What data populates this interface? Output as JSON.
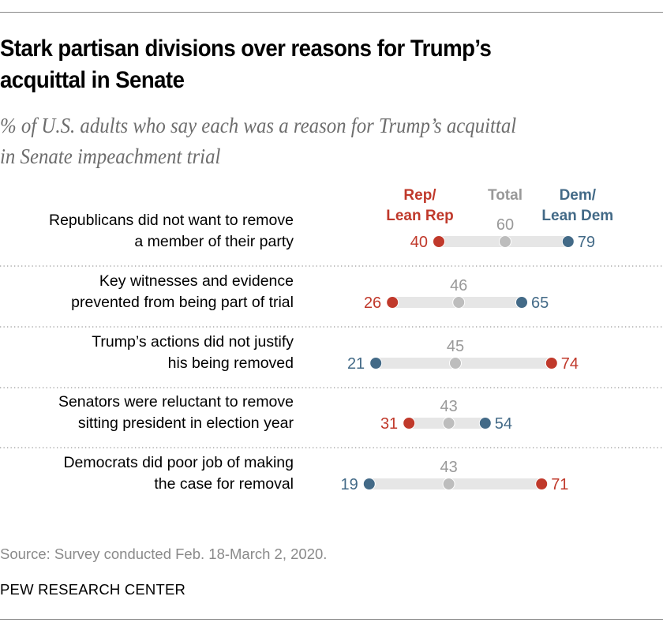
{
  "header": {
    "title_line1": "Stark partisan divisions over reasons for Trump’s",
    "title_line2": "acquittal in Senate",
    "subtitle_line1": "% of U.S. adults who say each was a reason for Trump’s acquittal",
    "subtitle_line2": "in Senate impeachment trial"
  },
  "footer": {
    "source": "Source: Survey conducted Feb. 18-March 2, 2020.",
    "brand": "PEW RESEARCH CENTER"
  },
  "colors": {
    "rep": "#c0392b",
    "dem": "#436a87",
    "total": "#bdbdbd",
    "total_text": "#999999",
    "bar": "#e6e6e6"
  },
  "chart_data": {
    "type": "dot-plot",
    "title": "Stark partisan divisions over reasons for Trump’s acquittal in Senate",
    "subtitle": "% of U.S. adults who say each was a reason for Trump’s acquittal in Senate impeachment trial",
    "legend": [
      {
        "key": "rep",
        "line1": "Rep/",
        "line2": "Lean Rep"
      },
      {
        "key": "total",
        "line1": "Total",
        "line2": ""
      },
      {
        "key": "dem",
        "line1": "Dem/",
        "line2": "Lean Dem"
      }
    ],
    "legend_placement": "top",
    "xlim": [
      0,
      100
    ],
    "grid": false,
    "categories": [
      {
        "line1": "Republicans did not want to remove",
        "line2": "a member of their party"
      },
      {
        "line1": "Key witnesses and evidence",
        "line2": "prevented from being part of trial"
      },
      {
        "line1": "Trump’s actions did not justify",
        "line2": "his being removed"
      },
      {
        "line1": "Senators were reluctant to remove",
        "line2": "sitting president in election year"
      },
      {
        "line1": "Democrats did poor job of making",
        "line2": "the case for removal"
      }
    ],
    "series": [
      {
        "name": "Rep/Lean Rep",
        "key": "rep",
        "values": [
          40,
          26,
          74,
          31,
          71
        ]
      },
      {
        "name": "Total",
        "key": "total",
        "values": [
          60,
          46,
          45,
          43,
          43
        ]
      },
      {
        "name": "Dem/Lean Dem",
        "key": "dem",
        "values": [
          79,
          65,
          21,
          54,
          19
        ]
      }
    ]
  }
}
